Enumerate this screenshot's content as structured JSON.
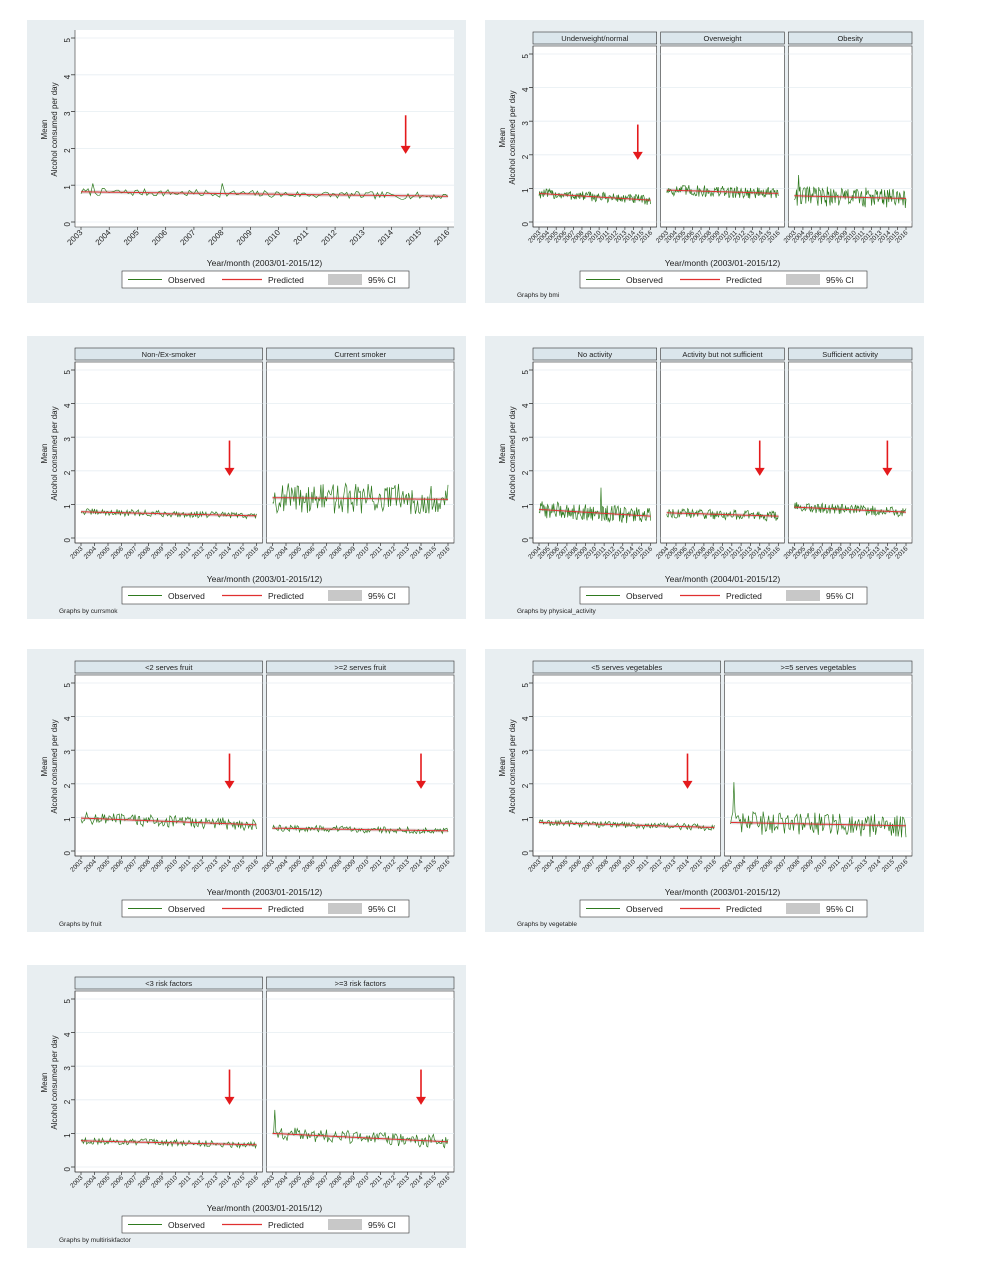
{
  "common": {
    "ylabel_line1": "Mean",
    "ylabel_line2": "Alcohol consumed per day",
    "yticks": [
      "0",
      "1",
      "2",
      "3",
      "4",
      "5"
    ],
    "ylim": [
      0,
      5
    ],
    "legend": {
      "observed": "Observed",
      "predicted": "Predicted",
      "ci": "95% CI"
    },
    "colors": {
      "observed": "#2f7a1f",
      "predicted": "#e03030",
      "ci": "#c8c8c8",
      "arrow": "#e41a1c",
      "frame": "#e8eef1",
      "strip": "#dbe6ec"
    }
  },
  "chart_data": [
    {
      "id": "overall",
      "type": "line",
      "xlabel": "Year/month (2003/01-2015/12)",
      "xticks": [
        "2003",
        "2004",
        "2005",
        "2006",
        "2007",
        "2008",
        "2009",
        "2010",
        "2011",
        "2012",
        "2013",
        "2014",
        "2015",
        "2016"
      ],
      "panels": [
        {
          "title": "",
          "level": 0.82,
          "slope": -0.12,
          "noise": 0.1,
          "spikes": [
            [
              60,
              1.05
            ],
            [
              5,
              1.05
            ]
          ],
          "arrow_year": 2014.5
        }
      ],
      "byline": ""
    },
    {
      "id": "bmi",
      "type": "line",
      "xlabel": "Year/month (2003/01-2015/12)",
      "xticks": [
        "2003",
        "2004",
        "2005",
        "2006",
        "2007",
        "2008",
        "2009",
        "2010",
        "2011",
        "2012",
        "2013",
        "2014",
        "2015",
        "2016"
      ],
      "panels": [
        {
          "title": "Underweight/normal",
          "level": 0.85,
          "slope": -0.2,
          "noise": 0.15,
          "spikes": [],
          "arrow_year": 2014.5
        },
        {
          "title": "Overweight",
          "level": 0.95,
          "slope": -0.1,
          "noise": 0.18,
          "spikes": [],
          "arrow_year": null
        },
        {
          "title": "Obesity",
          "level": 0.78,
          "slope": -0.08,
          "noise": 0.3,
          "spikes": [
            [
              6,
              1.4
            ]
          ],
          "arrow_year": null
        }
      ],
      "byline": "Graphs by bmi"
    },
    {
      "id": "smoking",
      "type": "line",
      "xlabel": "Year/month (2003/01-2015/12)",
      "xticks": [
        "2003",
        "2004",
        "2005",
        "2006",
        "2007",
        "2008",
        "2009",
        "2010",
        "2011",
        "2012",
        "2013",
        "2014",
        "2015",
        "2016"
      ],
      "panels": [
        {
          "title": "Non-/Ex-smoker",
          "level": 0.78,
          "slope": -0.12,
          "noise": 0.1,
          "spikes": [],
          "arrow_year": 2014
        },
        {
          "title": "Current smoker",
          "level": 1.2,
          "slope": -0.05,
          "noise": 0.45,
          "spikes": [],
          "arrow_year": null
        }
      ],
      "byline": "Graphs by currsmok"
    },
    {
      "id": "activity",
      "type": "line",
      "xlabel": "Year/month (2004/01-2015/12)",
      "xticks": [
        "2004",
        "2005",
        "2006",
        "2007",
        "2008",
        "2009",
        "2010",
        "2011",
        "2012",
        "2013",
        "2014",
        "2015",
        "2016"
      ],
      "panels": [
        {
          "title": "No activity",
          "level": 0.85,
          "slope": -0.2,
          "noise": 0.25,
          "spikes": [
            [
              80,
              1.5
            ]
          ],
          "arrow_year": null
        },
        {
          "title": "Activity but not sufficient",
          "level": 0.75,
          "slope": -0.1,
          "noise": 0.15,
          "spikes": [],
          "arrow_year": 2014
        },
        {
          "title": "Sufficient activity",
          "level": 0.92,
          "slope": -0.15,
          "noise": 0.15,
          "spikes": [],
          "arrow_year": 2014
        }
      ],
      "byline": "Graphs by physical_activity"
    },
    {
      "id": "fruit",
      "type": "line",
      "xlabel": "Year/month (2003/01-2015/12)",
      "xticks": [
        "2003",
        "2004",
        "2005",
        "2006",
        "2007",
        "2008",
        "2009",
        "2010",
        "2011",
        "2012",
        "2013",
        "2014",
        "2015",
        "2016"
      ],
      "panels": [
        {
          "title": "<2 serves fruit",
          "level": 0.98,
          "slope": -0.2,
          "noise": 0.18,
          "spikes": [],
          "arrow_year": 2014
        },
        {
          "title": ">=2 serves fruit",
          "level": 0.68,
          "slope": -0.08,
          "noise": 0.1,
          "spikes": [],
          "arrow_year": 2014
        }
      ],
      "byline": "Graphs by fruit"
    },
    {
      "id": "vegetable",
      "type": "line",
      "xlabel": "Year/month (2003/01-2015/12)",
      "xticks": [
        "2003",
        "2004",
        "2005",
        "2006",
        "2007",
        "2008",
        "2009",
        "2010",
        "2011",
        "2012",
        "2013",
        "2014",
        "2015",
        "2016"
      ],
      "panels": [
        {
          "title": "<5 serves vegetables",
          "level": 0.85,
          "slope": -0.15,
          "noise": 0.1,
          "spikes": [],
          "arrow_year": 2014
        },
        {
          "title": ">=5 serves vegetables",
          "level": 0.85,
          "slope": -0.1,
          "noise": 0.35,
          "spikes": [
            [
              3,
              2.05
            ]
          ],
          "arrow_year": null
        }
      ],
      "byline": "Graphs by vegetable"
    },
    {
      "id": "risk",
      "type": "line",
      "xlabel": "Year/month (2003/01-2015/12)",
      "xticks": [
        "2003",
        "2004",
        "2005",
        "2006",
        "2007",
        "2008",
        "2009",
        "2010",
        "2011",
        "2012",
        "2013",
        "2014",
        "2015",
        "2016"
      ],
      "panels": [
        {
          "title": "<3 risk factors",
          "level": 0.78,
          "slope": -0.12,
          "noise": 0.1,
          "spikes": [],
          "arrow_year": 2014
        },
        {
          "title": ">=3 risk factors",
          "level": 1.0,
          "slope": -0.25,
          "noise": 0.2,
          "spikes": [
            [
              2,
              1.7
            ]
          ],
          "arrow_year": 2014
        }
      ],
      "byline": "Graphs by multiriskfactor"
    }
  ]
}
